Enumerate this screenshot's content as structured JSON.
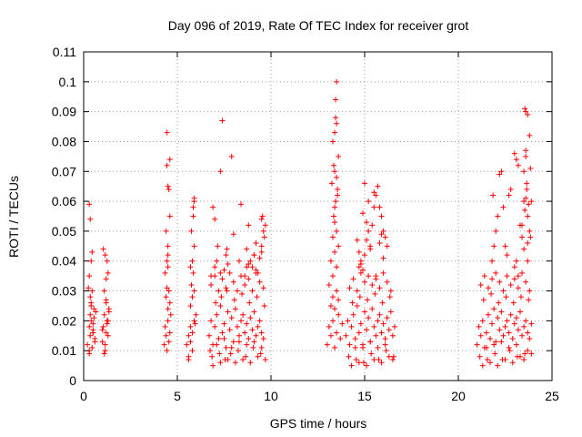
{
  "chart_data": {
    "type": "scatter",
    "title": "Day 096 of 2019, Rate Of TEC Index for receiver grot",
    "xlabel": "GPS time / hours",
    "ylabel": "ROTI / TECUs",
    "xlim": [
      0,
      25
    ],
    "ylim": [
      0,
      0.11
    ],
    "xticks": [
      "0",
      "5",
      "10",
      "15",
      "20",
      "25"
    ],
    "yticks": [
      "0",
      "0.01",
      "0.02",
      "0.03",
      "0.04",
      "0.05",
      "0.06",
      "0.07",
      "0.08",
      "0.09",
      "0.1",
      "0.11"
    ],
    "grid": true,
    "marker": "plus",
    "color": "#ff0000",
    "series": [
      {
        "x": [
          0.2,
          0.3,
          0.35,
          0.4,
          0.45,
          0.5,
          0.3,
          0.35,
          0.5,
          0.55,
          0.6,
          0.3,
          0.25,
          0.35,
          0.4,
          0.45,
          0.3,
          0.35,
          0.4,
          0.5,
          0.55,
          0.6,
          0.65,
          0.3,
          0.4,
          0.45,
          0.5,
          1.0,
          1.05,
          1.1,
          1.15,
          1.2,
          1.25,
          1.3,
          1.35,
          1.1,
          1.2,
          1.3,
          1.15,
          1.25,
          1.05,
          1.2,
          1.3,
          1.1,
          1.15,
          1.25,
          1.35,
          1.0,
          1.2,
          4.3,
          4.35,
          4.4,
          4.45,
          4.5,
          4.6,
          4.65,
          4.4,
          4.45,
          4.5,
          4.55,
          4.35,
          4.45,
          4.5,
          4.5,
          4.4,
          4.6,
          4.55,
          4.5,
          4.45,
          4.6,
          4.45,
          4.5,
          4.55,
          4.6,
          5.5,
          5.6,
          5.7,
          5.8,
          5.9,
          6.0,
          5.7,
          5.8,
          5.9,
          5.6,
          5.75,
          5.85,
          5.8,
          5.9,
          5.75,
          5.85,
          5.9,
          5.6,
          5.7,
          5.8,
          5.95,
          5.7,
          5.85,
          5.9,
          6.7,
          6.8,
          6.9,
          7.0,
          7.1,
          7.2,
          7.3,
          7.4,
          7.5,
          7.6,
          7.7,
          7.8,
          7.9,
          8.0,
          8.1,
          8.2,
          8.3,
          8.4,
          8.5,
          8.6,
          8.7,
          8.8,
          8.9,
          9.0,
          9.1,
          9.2,
          9.3,
          9.4,
          9.5,
          9.6,
          6.75,
          6.85,
          7.05,
          7.25,
          7.35,
          7.55,
          7.65,
          7.85,
          8.05,
          8.25,
          8.45,
          8.65,
          8.85,
          9.05,
          9.25,
          9.45,
          9.65,
          6.8,
          7.0,
          7.2,
          7.4,
          7.6,
          7.8,
          8.0,
          8.2,
          8.4,
          8.6,
          8.8,
          9.0,
          9.2,
          9.4,
          9.6,
          6.9,
          7.1,
          7.3,
          7.5,
          7.7,
          7.9,
          8.1,
          8.3,
          8.5,
          8.7,
          8.9,
          9.1,
          9.3,
          9.5,
          9.7,
          7.1,
          7.15,
          7.0,
          7.6,
          7.65,
          6.8,
          7.3,
          7.5,
          7.7,
          9.5,
          9.6,
          9.7,
          9.55,
          9.65,
          9.4,
          9.5,
          8.9,
          9.0,
          9.1,
          8.7,
          9.2,
          9.3,
          8.6,
          8.8,
          7.0,
          7.4,
          8.0,
          8.4,
          8.8,
          9.2,
          6.9,
          7.3,
          7.9,
          8.3,
          8.7,
          9.1,
          9.5,
          13.0,
          13.1,
          13.2,
          13.3,
          13.4,
          13.5,
          13.6,
          13.7,
          13.8,
          13.2,
          13.3,
          13.4,
          13.5,
          13.6,
          13.1,
          13.3,
          13.5,
          13.2,
          13.4,
          13.6,
          13.3,
          13.5,
          13.4,
          13.35,
          13.45,
          13.55,
          13.25,
          13.5,
          13.4,
          13.6,
          13.3,
          13.4,
          13.5,
          13.45,
          13.35,
          13.55,
          13.45,
          13.5,
          13.4,
          14.0,
          14.1,
          14.2,
          14.3,
          14.4,
          14.5,
          14.6,
          14.7,
          14.8,
          14.9,
          15.0,
          15.1,
          15.2,
          15.3,
          15.4,
          15.5,
          15.6,
          15.7,
          15.8,
          15.9,
          16.0,
          16.1,
          16.2,
          16.3,
          16.4,
          16.5,
          16.6,
          14.15,
          14.35,
          14.55,
          14.75,
          14.95,
          15.15,
          15.35,
          15.55,
          15.75,
          15.95,
          16.15,
          16.35,
          16.55,
          14.2,
          14.4,
          14.6,
          14.8,
          15.0,
          15.2,
          15.4,
          15.6,
          15.8,
          16.0,
          16.2,
          16.4,
          14.3,
          14.5,
          14.7,
          14.9,
          15.1,
          15.3,
          15.5,
          15.7,
          15.9,
          16.1,
          16.3,
          16.5,
          14.8,
          15.0,
          15.1,
          15.2,
          15.3,
          14.9,
          15.4,
          15.5,
          15.2,
          15.6,
          15.7,
          15.8,
          15.9,
          16.0,
          16.1,
          16.2,
          14.6,
          14.7,
          15.0,
          15.3,
          15.5,
          15.8,
          16.0,
          14.7,
          14.8,
          15.6,
          15.9,
          14.9,
          15.1,
          21.0,
          21.1,
          21.2,
          21.3,
          21.4,
          21.5,
          21.6,
          21.7,
          21.8,
          21.9,
          22.0,
          22.1,
          22.2,
          22.3,
          22.4,
          22.5,
          22.6,
          22.7,
          22.8,
          22.9,
          23.0,
          23.1,
          23.2,
          23.3,
          23.4,
          23.5,
          23.6,
          23.7,
          23.8,
          23.9,
          21.15,
          21.35,
          21.55,
          21.75,
          21.95,
          22.15,
          22.35,
          22.55,
          22.75,
          22.95,
          23.15,
          23.35,
          23.55,
          23.75,
          21.2,
          21.4,
          21.6,
          21.8,
          22.0,
          22.2,
          22.4,
          22.6,
          22.8,
          23.0,
          23.2,
          23.4,
          23.6,
          23.8,
          21.3,
          21.5,
          21.7,
          21.9,
          22.1,
          22.3,
          22.5,
          22.7,
          22.9,
          23.1,
          23.3,
          23.5,
          23.7,
          23.9,
          21.8,
          21.9,
          22.0,
          22.1,
          21.85,
          22.2,
          22.3,
          22.5,
          22.6,
          23.0,
          23.1,
          23.2,
          23.3,
          23.4,
          23.5,
          23.55,
          23.6,
          23.65,
          23.7,
          23.75,
          23.8,
          23.85,
          23.9,
          23.5,
          23.6,
          23.7,
          23.6,
          23.55,
          23.65,
          23.4,
          23.7,
          23.8,
          22.7,
          22.8,
          22.4,
          23.0,
          23.1,
          23.2,
          23.6,
          23.5,
          23.85,
          23.7
        ],
        "y": [
          0.012,
          0.018,
          0.015,
          0.02,
          0.011,
          0.016,
          0.009,
          0.022,
          0.019,
          0.024,
          0.013,
          0.035,
          0.031,
          0.028,
          0.026,
          0.043,
          0.059,
          0.054,
          0.04,
          0.017,
          0.021,
          0.014,
          0.023,
          0.01,
          0.025,
          0.03,
          0.016,
          0.013,
          0.018,
          0.022,
          0.01,
          0.016,
          0.02,
          0.015,
          0.024,
          0.03,
          0.034,
          0.036,
          0.042,
          0.04,
          0.044,
          0.027,
          0.02,
          0.009,
          0.012,
          0.019,
          0.023,
          0.017,
          0.026,
          0.012,
          0.018,
          0.015,
          0.01,
          0.02,
          0.016,
          0.022,
          0.028,
          0.031,
          0.024,
          0.013,
          0.036,
          0.04,
          0.042,
          0.045,
          0.05,
          0.055,
          0.064,
          0.065,
          0.072,
          0.074,
          0.083,
          0.038,
          0.03,
          0.026,
          0.012,
          0.015,
          0.018,
          0.01,
          0.02,
          0.022,
          0.025,
          0.028,
          0.03,
          0.008,
          0.032,
          0.036,
          0.04,
          0.045,
          0.05,
          0.055,
          0.06,
          0.007,
          0.013,
          0.016,
          0.019,
          0.038,
          0.058,
          0.061,
          0.015,
          0.02,
          0.012,
          0.018,
          0.022,
          0.014,
          0.025,
          0.016,
          0.019,
          0.011,
          0.023,
          0.017,
          0.021,
          0.013,
          0.024,
          0.018,
          0.015,
          0.02,
          0.022,
          0.016,
          0.019,
          0.014,
          0.021,
          0.017,
          0.023,
          0.015,
          0.018,
          0.02,
          0.016,
          0.014,
          0.01,
          0.008,
          0.026,
          0.009,
          0.028,
          0.007,
          0.03,
          0.009,
          0.027,
          0.01,
          0.029,
          0.008,
          0.026,
          0.011,
          0.028,
          0.009,
          0.025,
          0.032,
          0.035,
          0.03,
          0.034,
          0.031,
          0.036,
          0.033,
          0.03,
          0.035,
          0.032,
          0.034,
          0.03,
          0.036,
          0.033,
          0.031,
          0.005,
          0.012,
          0.006,
          0.014,
          0.007,
          0.011,
          0.006,
          0.013,
          0.007,
          0.012,
          0.006,
          0.013,
          0.008,
          0.011,
          0.007,
          0.04,
          0.045,
          0.038,
          0.042,
          0.044,
          0.035,
          0.036,
          0.037,
          0.039,
          0.045,
          0.05,
          0.052,
          0.055,
          0.048,
          0.041,
          0.043,
          0.04,
          0.038,
          0.042,
          0.044,
          0.037,
          0.036,
          0.035,
          0.039,
          0.054,
          0.087,
          0.049,
          0.059,
          0.052,
          0.046,
          0.058,
          0.07,
          0.075,
          0.04,
          0.038,
          0.042,
          0.054,
          0.012,
          0.018,
          0.015,
          0.02,
          0.011,
          0.016,
          0.022,
          0.014,
          0.019,
          0.025,
          0.028,
          0.024,
          0.03,
          0.027,
          0.032,
          0.035,
          0.038,
          0.04,
          0.043,
          0.045,
          0.048,
          0.05,
          0.053,
          0.055,
          0.06,
          0.062,
          0.066,
          0.068,
          0.07,
          0.075,
          0.08,
          0.083,
          0.086,
          0.088,
          0.072,
          0.064,
          0.094,
          0.1,
          0.058,
          0.015,
          0.02,
          0.012,
          0.018,
          0.022,
          0.014,
          0.025,
          0.016,
          0.019,
          0.011,
          0.023,
          0.017,
          0.021,
          0.013,
          0.024,
          0.018,
          0.015,
          0.02,
          0.022,
          0.016,
          0.019,
          0.014,
          0.021,
          0.017,
          0.023,
          0.015,
          0.018,
          0.008,
          0.026,
          0.007,
          0.028,
          0.006,
          0.027,
          0.009,
          0.029,
          0.007,
          0.026,
          0.01,
          0.028,
          0.008,
          0.031,
          0.034,
          0.03,
          0.036,
          0.033,
          0.035,
          0.032,
          0.034,
          0.031,
          0.036,
          0.033,
          0.03,
          0.005,
          0.011,
          0.006,
          0.012,
          0.005,
          0.013,
          0.007,
          0.011,
          0.006,
          0.012,
          0.008,
          0.007,
          0.04,
          0.042,
          0.047,
          0.05,
          0.045,
          0.056,
          0.052,
          0.058,
          0.06,
          0.062,
          0.065,
          0.058,
          0.055,
          0.05,
          0.048,
          0.045,
          0.047,
          0.038,
          0.066,
          0.044,
          0.063,
          0.046,
          0.041,
          0.043,
          0.039,
          0.035,
          0.049,
          0.037,
          0.053,
          0.012,
          0.018,
          0.015,
          0.02,
          0.011,
          0.016,
          0.022,
          0.014,
          0.019,
          0.024,
          0.013,
          0.021,
          0.017,
          0.023,
          0.015,
          0.018,
          0.02,
          0.016,
          0.022,
          0.014,
          0.019,
          0.021,
          0.017,
          0.023,
          0.015,
          0.018,
          0.02,
          0.016,
          0.014,
          0.019,
          0.008,
          0.027,
          0.007,
          0.029,
          0.009,
          0.026,
          0.007,
          0.028,
          0.01,
          0.026,
          0.008,
          0.028,
          0.009,
          0.027,
          0.032,
          0.035,
          0.031,
          0.034,
          0.036,
          0.033,
          0.03,
          0.035,
          0.032,
          0.034,
          0.031,
          0.036,
          0.033,
          0.03,
          0.005,
          0.011,
          0.006,
          0.012,
          0.005,
          0.013,
          0.007,
          0.011,
          0.006,
          0.012,
          0.008,
          0.007,
          0.01,
          0.009,
          0.04,
          0.045,
          0.05,
          0.055,
          0.062,
          0.069,
          0.07,
          0.045,
          0.042,
          0.038,
          0.04,
          0.035,
          0.052,
          0.048,
          0.044,
          0.057,
          0.061,
          0.064,
          0.055,
          0.059,
          0.05,
          0.048,
          0.06,
          0.07,
          0.075,
          0.089,
          0.09,
          0.091,
          0.066,
          0.052,
          0.046,
          0.082,
          0.062,
          0.064,
          0.058,
          0.076,
          0.074,
          0.072,
          0.077,
          0.06,
          0.071,
          0.04
        ]
      }
    ]
  }
}
